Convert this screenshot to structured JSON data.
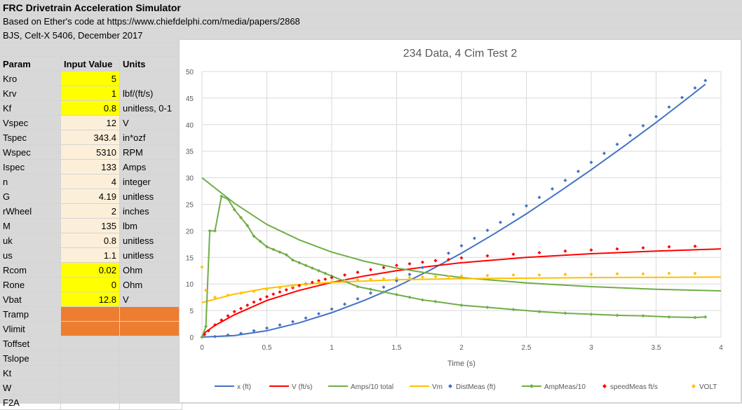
{
  "sheet": {
    "title": "FRC Drivetrain Acceleration Simulator",
    "line2": "Based on Ether's code at https://www.chiefdelphi.com/media/papers/2868",
    "line3": "BJS, Celt-X 5406, December 2017",
    "headers": {
      "param": "Param",
      "value": "Input Value",
      "units": "Units"
    },
    "rows": [
      {
        "param": "Kro",
        "value": "5",
        "units": "",
        "fill": "yellow"
      },
      {
        "param": "Krv",
        "value": "1",
        "units": "lbf/(ft/s)",
        "fill": "yellow"
      },
      {
        "param": "Kf",
        "value": "0.8",
        "units": "unitless, 0-1",
        "fill": "yellow"
      },
      {
        "param": "Vspec",
        "value": "12",
        "units": "V",
        "fill": "beige"
      },
      {
        "param": "Tspec",
        "value": "343.4",
        "units": "in*ozf",
        "fill": "beige"
      },
      {
        "param": "Wspec",
        "value": "5310",
        "units": "RPM",
        "fill": "beige"
      },
      {
        "param": "Ispec",
        "value": "133",
        "units": "Amps",
        "fill": "beige"
      },
      {
        "param": "n",
        "value": "4",
        "units": "integer",
        "fill": "beige"
      },
      {
        "param": "G",
        "value": "4.19",
        "units": "unitless",
        "fill": "beige"
      },
      {
        "param": "rWheel",
        "value": "2",
        "units": "inches",
        "fill": "beige"
      },
      {
        "param": "M",
        "value": "135",
        "units": "lbm",
        "fill": "beige"
      },
      {
        "param": "uk",
        "value": "0.8",
        "units": "unitless",
        "fill": "beige"
      },
      {
        "param": "us",
        "value": "1.1",
        "units": "unitless",
        "fill": "beige"
      },
      {
        "param": "Rcom",
        "value": "0.02",
        "units": "Ohm",
        "fill": "yellow"
      },
      {
        "param": "Rone",
        "value": "0",
        "units": "Ohm",
        "fill": "yellow"
      },
      {
        "param": "Vbat",
        "value": "12.8",
        "units": "V",
        "fill": "yellow"
      },
      {
        "param": "Tramp",
        "value": "",
        "units": "",
        "fill": "orange"
      },
      {
        "param": "Vlimit",
        "value": "",
        "units": "",
        "fill": "orange"
      },
      {
        "param": "Toffset",
        "value": "",
        "units": "",
        "fill": "none"
      },
      {
        "param": "Tslope",
        "value": "",
        "units": "",
        "fill": "none"
      },
      {
        "param": "Kt",
        "value": "",
        "units": "",
        "fill": "none"
      },
      {
        "param": "W",
        "value": "",
        "units": "",
        "fill": "none"
      },
      {
        "param": "F2A",
        "value": "",
        "units": "",
        "fill": "none"
      }
    ]
  },
  "colors": {
    "yellow": "#ffff00",
    "beige": "#fcefd9",
    "orange": "#ed7d31",
    "x": "#4472c4",
    "v": "#ff0000",
    "amps": "#70ad47",
    "vm": "#ffc000",
    "dist": "#4472c4",
    "ampmeas": "#70ad47",
    "speed": "#ff0000",
    "volt": "#ffc000"
  },
  "chart_data": {
    "type": "line",
    "title": "234 Data, 4 Cim Test 2",
    "xlabel": "Time (s)",
    "ylabel": "",
    "xlim": [
      0,
      4
    ],
    "ylim": [
      0,
      50
    ],
    "xticks": [
      "0",
      "0.5",
      "1",
      "1.5",
      "2",
      "2.5",
      "3",
      "3.5",
      "4"
    ],
    "yticks": [
      "0",
      "5",
      "10",
      "15",
      "20",
      "25",
      "30",
      "35",
      "40",
      "45",
      "50"
    ],
    "grid": true,
    "legend": "bottom",
    "series": [
      {
        "name": "x (ft)",
        "style": "line",
        "color": "x",
        "x": [
          0,
          0.25,
          0.5,
          0.75,
          1.0,
          1.25,
          1.5,
          1.75,
          2.0,
          2.25,
          2.5,
          2.75,
          3.0,
          3.25,
          3.5,
          3.75,
          3.88
        ],
        "y": [
          0,
          0.3,
          1.2,
          2.7,
          4.6,
          6.9,
          9.5,
          12.5,
          15.8,
          19.4,
          23.2,
          27.3,
          31.5,
          35.9,
          40.4,
          45.1,
          47.6
        ]
      },
      {
        "name": "V (ft/s)",
        "style": "line",
        "color": "v",
        "x": [
          0,
          0.02,
          0.1,
          0.25,
          0.5,
          0.75,
          1.0,
          1.25,
          1.5,
          1.75,
          2.0,
          2.5,
          3.0,
          3.5,
          4.0
        ],
        "y": [
          0,
          0.8,
          2.2,
          4.2,
          6.9,
          8.8,
          10.3,
          11.5,
          12.5,
          13.3,
          14.0,
          15.0,
          15.7,
          16.2,
          16.6
        ]
      },
      {
        "name": "Amps/10 total",
        "style": "line",
        "color": "amps",
        "x": [
          0,
          0.25,
          0.5,
          0.75,
          1.0,
          1.25,
          1.5,
          1.75,
          2.0,
          2.5,
          3.0,
          3.5,
          4.0
        ],
        "y": [
          30.0,
          25.2,
          21.2,
          18.3,
          16.0,
          14.3,
          13.0,
          12.0,
          11.2,
          10.2,
          9.5,
          9.0,
          8.7
        ]
      },
      {
        "name": "Vm",
        "style": "line",
        "color": "vm",
        "x": [
          0,
          0.25,
          0.5,
          0.75,
          1.0,
          1.5,
          2.0,
          2.5,
          3.0,
          3.5,
          4.0
        ],
        "y": [
          6.5,
          8.1,
          9.2,
          9.9,
          10.3,
          10.8,
          11.0,
          11.1,
          11.2,
          11.25,
          11.3
        ]
      },
      {
        "name": "DistMeas (ft)",
        "style": "markers",
        "marker": "diamond",
        "color": "dist",
        "x": [
          0,
          0.1,
          0.2,
          0.3,
          0.4,
          0.5,
          0.6,
          0.7,
          0.8,
          0.9,
          1.0,
          1.1,
          1.2,
          1.3,
          1.4,
          1.5,
          1.6,
          1.7,
          1.8,
          1.9,
          2.0,
          2.1,
          2.2,
          2.3,
          2.4,
          2.5,
          2.6,
          2.7,
          2.8,
          2.9,
          3.0,
          3.1,
          3.2,
          3.3,
          3.4,
          3.5,
          3.6,
          3.7,
          3.8,
          3.88
        ],
        "y": [
          0,
          0.1,
          0.4,
          0.7,
          1.2,
          1.7,
          2.3,
          2.9,
          3.6,
          4.4,
          5.3,
          6.2,
          7.2,
          8.3,
          9.4,
          10.6,
          11.8,
          13.1,
          14.4,
          15.8,
          17.2,
          18.6,
          20.1,
          21.6,
          23.1,
          24.7,
          26.3,
          27.9,
          29.5,
          31.2,
          32.9,
          34.6,
          36.3,
          38.0,
          39.8,
          41.5,
          43.3,
          45.1,
          46.9,
          48.3
        ]
      },
      {
        "name": "AmpMeas/10",
        "style": "line-markers",
        "marker": "diamond",
        "color": "ampmeas",
        "x": [
          0,
          0.03,
          0.06,
          0.1,
          0.15,
          0.2,
          0.25,
          0.3,
          0.35,
          0.4,
          0.45,
          0.5,
          0.55,
          0.6,
          0.65,
          0.7,
          0.75,
          0.8,
          0.85,
          0.9,
          0.95,
          1.0,
          1.1,
          1.2,
          1.3,
          1.4,
          1.5,
          1.6,
          1.7,
          1.8,
          2.0,
          2.2,
          2.4,
          2.6,
          2.8,
          3.0,
          3.2,
          3.4,
          3.6,
          3.8,
          3.88
        ],
        "y": [
          0,
          2.0,
          20.0,
          20.0,
          26.5,
          26.0,
          24.0,
          22.5,
          21.0,
          19.0,
          18.0,
          17.0,
          16.5,
          16.0,
          15.5,
          14.5,
          14.0,
          13.5,
          13.0,
          12.5,
          12.0,
          11.5,
          10.5,
          9.5,
          9.0,
          8.5,
          8.0,
          7.5,
          7.0,
          6.7,
          6.0,
          5.6,
          5.2,
          4.8,
          4.5,
          4.3,
          4.1,
          4.0,
          3.8,
          3.7,
          3.8
        ]
      },
      {
        "name": "speedMeas ft/s",
        "style": "markers",
        "marker": "diamond",
        "color": "speed",
        "x": [
          0.02,
          0.05,
          0.1,
          0.15,
          0.2,
          0.25,
          0.3,
          0.35,
          0.4,
          0.45,
          0.5,
          0.55,
          0.6,
          0.65,
          0.7,
          0.75,
          0.8,
          0.85,
          0.9,
          0.95,
          1.0,
          1.1,
          1.2,
          1.3,
          1.4,
          1.5,
          1.6,
          1.7,
          1.8,
          1.9,
          2.0,
          2.2,
          2.4,
          2.6,
          2.8,
          3.0,
          3.2,
          3.4,
          3.6,
          3.8
        ],
        "y": [
          0.5,
          1.2,
          2.3,
          3.2,
          4.0,
          4.8,
          5.4,
          6.0,
          6.6,
          7.1,
          7.6,
          8.1,
          8.5,
          8.9,
          9.3,
          9.7,
          10.0,
          10.3,
          10.6,
          10.9,
          11.2,
          11.7,
          12.2,
          12.7,
          13.1,
          13.5,
          13.8,
          14.1,
          14.4,
          14.6,
          14.9,
          15.3,
          15.6,
          15.9,
          16.2,
          16.4,
          16.6,
          16.8,
          17.0,
          17.1
        ]
      },
      {
        "name": "VOLT",
        "style": "markers",
        "marker": "diamond",
        "color": "volt",
        "x": [
          0,
          0.03,
          0.1,
          0.2,
          0.3,
          0.4,
          0.5,
          0.6,
          0.7,
          0.8,
          0.9,
          1.0,
          1.1,
          1.2,
          1.3,
          1.4,
          1.5,
          1.6,
          1.7,
          1.8,
          1.9,
          2.0,
          2.2,
          2.4,
          2.6,
          2.8,
          3.0,
          3.2,
          3.4,
          3.6,
          3.8
        ],
        "y": [
          13.2,
          8.8,
          7.5,
          7.9,
          8.3,
          8.6,
          9.0,
          9.3,
          9.6,
          9.9,
          10.2,
          10.4,
          10.6,
          10.8,
          10.9,
          11.0,
          11.1,
          11.2,
          11.3,
          11.4,
          11.4,
          11.5,
          11.6,
          11.7,
          11.7,
          11.8,
          11.8,
          11.9,
          11.9,
          12.0,
          12.0
        ]
      }
    ]
  }
}
